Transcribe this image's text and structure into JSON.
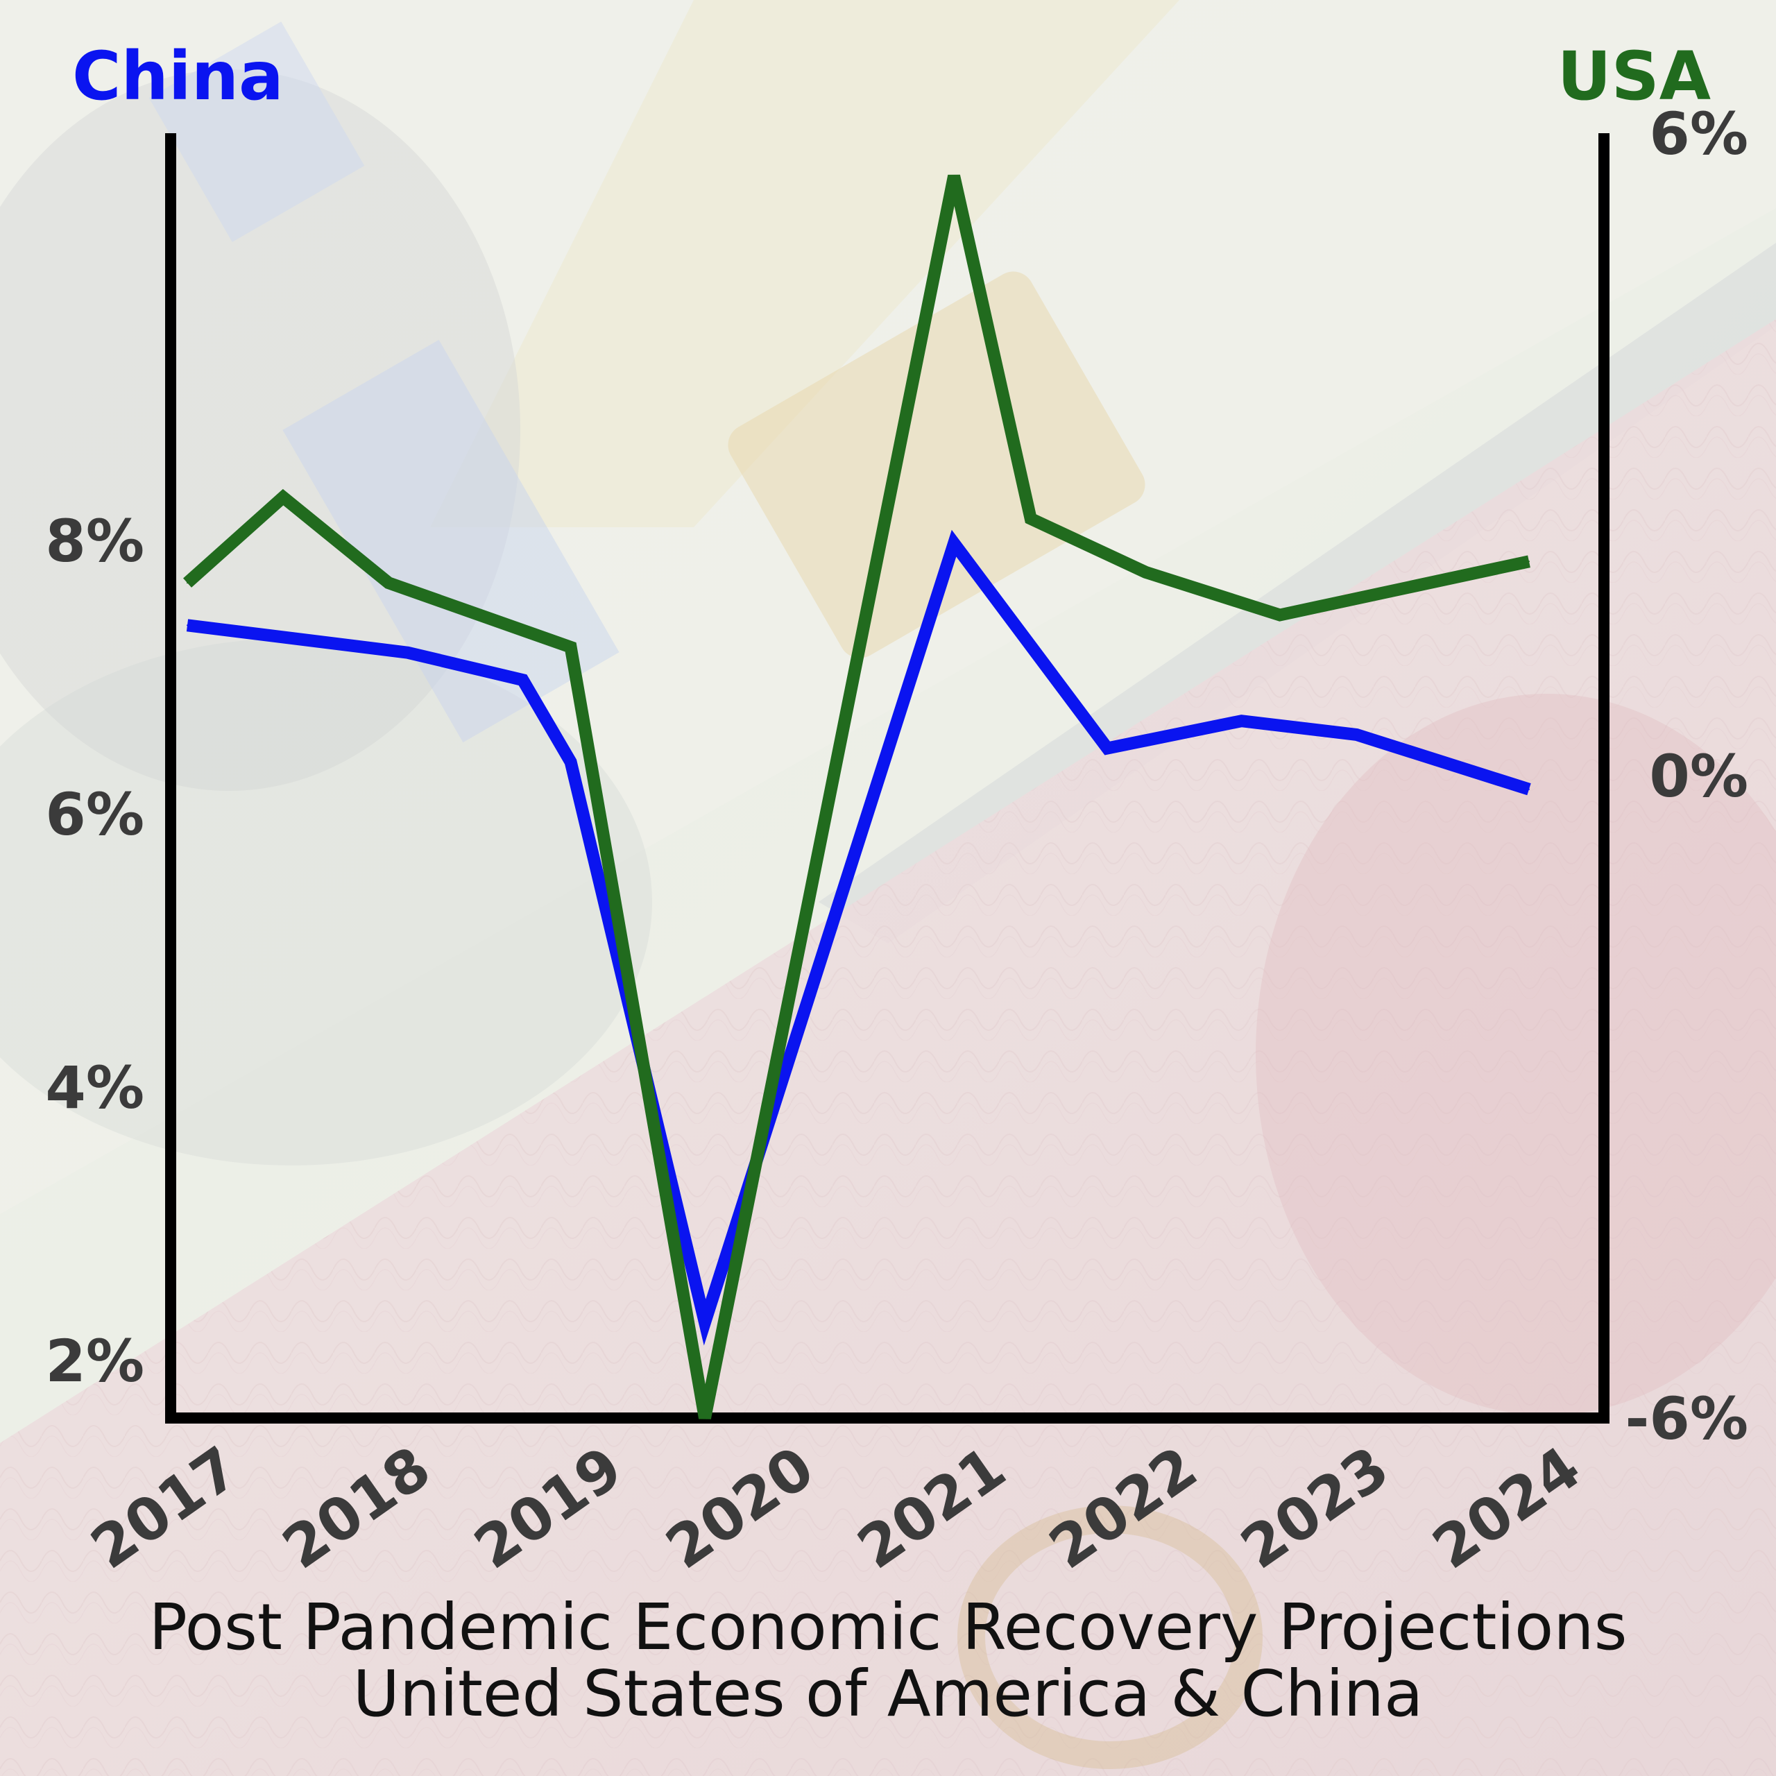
{
  "chart_data": {
    "type": "line",
    "title": "Post Pandemic Economic Recovery Projections",
    "subtitle": "United States of America & China",
    "categories": [
      "2017",
      "2018",
      "2019",
      "2020",
      "2021",
      "2022",
      "2023",
      "2024"
    ],
    "left_axis": {
      "ticks": [
        "2%",
        "4%",
        "6%",
        "8%"
      ],
      "range": [
        1.6,
        11.0
      ]
    },
    "right_axis": {
      "ticks": [
        "-6%",
        "0%",
        "6%"
      ],
      "range": [
        -6,
        6
      ]
    },
    "series": [
      {
        "name": "China",
        "axis": "left",
        "color": "#0a14f0",
        "x": [
          2017.0,
          2018.15,
          2018.75,
          2019.0,
          2019.7,
          2021.0,
          2021.8,
          2022.5,
          2023.1,
          2024.0
        ],
        "values": [
          7.4,
          7.2,
          7.0,
          6.4,
          2.3,
          8.0,
          6.5,
          6.7,
          6.6,
          6.2
        ]
      },
      {
        "name": "USA",
        "axis": "right",
        "color": "#216b1e",
        "x": [
          2017.0,
          2017.5,
          2018.05,
          2019.0,
          2019.7,
          2021.0,
          2021.4,
          2022.0,
          2022.7,
          2024.0
        ],
        "values": [
          1.8,
          2.6,
          1.8,
          1.2,
          -6.0,
          5.6,
          2.4,
          1.9,
          1.5,
          2.0
        ]
      }
    ],
    "grid": false,
    "legend": "top"
  }
}
